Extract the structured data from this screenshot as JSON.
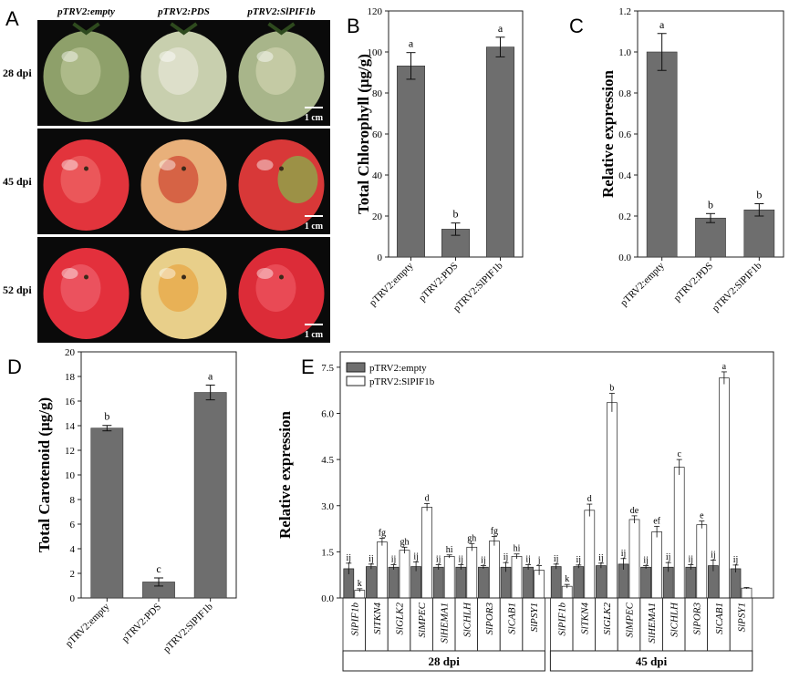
{
  "panel_a": {
    "label": "A",
    "columns": [
      "pTRV2:empty",
      "pTRV2:PDS",
      "pTRV2:SlPIF1b"
    ],
    "rows": [
      "28 dpi",
      "45 dpi",
      "52 dpi"
    ],
    "scale_bar": "1 cm",
    "fruit_colors": [
      [
        "#8ea06a",
        "#c8cfae",
        "#a8b58a"
      ],
      [
        "#e2343c",
        "#e8b07a",
        "#d83838"
      ],
      [
        "#e3303c",
        "#e8cf8a",
        "#dc2c38"
      ]
    ],
    "patch_colors": [
      [
        "#bfc89a",
        "#e8e8d8",
        "#d2d6b2"
      ],
      [
        "#f06a6a",
        "#cc3a2a",
        "#7cc24e"
      ],
      [
        "#f06670",
        "#e8a23a",
        "#f05a66"
      ]
    ]
  },
  "chart_data": [
    {
      "panel": "B",
      "type": "bar",
      "categories": [
        "pTRV2:empty",
        "pTRV2:PDS",
        "pTRV2:SlPIF1b"
      ],
      "values": [
        93.2,
        13.6,
        102.4
      ],
      "errors": [
        6.5,
        3.0,
        4.8
      ],
      "letters": [
        "a",
        "b",
        "a"
      ],
      "ylabel": "Total Chlorophyll (μg/g)",
      "ylim": [
        0,
        120
      ],
      "yticks": [
        "0",
        "20",
        "40",
        "60",
        "80",
        "100",
        "120"
      ],
      "bar_color": "#6e6e6e"
    },
    {
      "panel": "C",
      "type": "bar",
      "categories": [
        "pTRV2:empty",
        "pTRV2:PDS",
        "pTRV2:SlPIF1b"
      ],
      "values": [
        1.0,
        0.19,
        0.23
      ],
      "errors": [
        0.09,
        0.022,
        0.03
      ],
      "letters": [
        "a",
        "b",
        "b"
      ],
      "ylabel": "Relative expression",
      "ylim": [
        0,
        1.2
      ],
      "yticks": [
        "0.0",
        "0.2",
        "0.4",
        "0.6",
        "0.8",
        "1.0",
        "1.2"
      ],
      "bar_color": "#6e6e6e"
    },
    {
      "panel": "D",
      "type": "bar",
      "categories": [
        "pTRV2:empty",
        "pTRV2:PDS",
        "pTRV2:SlPIF1b"
      ],
      "values": [
        13.8,
        1.3,
        16.7
      ],
      "errors": [
        0.22,
        0.33,
        0.6
      ],
      "letters": [
        "b",
        "c",
        "a"
      ],
      "ylabel": "Total Carotenoid (μg/g)",
      "ylim": [
        0,
        20
      ],
      "yticks": [
        "0",
        "2",
        "4",
        "6",
        "8",
        "10",
        "12",
        "14",
        "16",
        "18",
        "20"
      ],
      "bar_color": "#6e6e6e"
    },
    {
      "panel": "E",
      "type": "bar",
      "ylabel": "Relative expression",
      "ylim": [
        0,
        8
      ],
      "yticks": [
        "0.0",
        "1.5",
        "3.0",
        "4.5",
        "6.0",
        "7.5"
      ],
      "legend": [
        "pTRV2:empty",
        "pTRV2:SlPIF1b"
      ],
      "groups": [
        "28 dpi",
        "45 dpi"
      ],
      "genes": [
        "SlPIF1b",
        "SlTKN4",
        "SlGLK2",
        "SlMPEC",
        "SlHEMA1",
        "SlCHLH",
        "SlPOR3",
        "SlCAB1",
        "SlPSY1"
      ],
      "series": [
        {
          "name": "pTRV2:empty",
          "color": "#6e6e6e",
          "values_28": [
            0.95,
            1.02,
            1.0,
            1.02,
            1.0,
            1.0,
            1.0,
            1.0,
            1.0
          ],
          "errors_28": [
            0.18,
            0.08,
            0.08,
            0.15,
            0.08,
            0.08,
            0.05,
            0.15,
            0.08
          ],
          "letters_28": [
            "ij",
            "ij",
            "ij",
            "ij",
            "ij",
            "ij",
            "ij",
            "ij",
            "ij"
          ],
          "values_45": [
            1.02,
            1.02,
            1.05,
            1.1,
            1.0,
            1.0,
            1.0,
            1.05,
            0.95
          ],
          "errors_45": [
            0.08,
            0.05,
            0.08,
            0.18,
            0.05,
            0.15,
            0.08,
            0.18,
            0.12
          ],
          "letters_45": [
            "ij",
            "ij",
            "ij",
            "ij",
            "ij",
            "ij",
            "ij",
            "ij",
            "ij"
          ]
        },
        {
          "name": "pTRV2:SlPIF1b",
          "color": "#ffffff",
          "values_28": [
            0.25,
            1.82,
            1.55,
            2.95,
            1.35,
            1.65,
            1.85,
            1.35,
            0.9
          ],
          "errors_28": [
            0.05,
            0.12,
            0.1,
            0.12,
            0.05,
            0.12,
            0.15,
            0.08,
            0.15
          ],
          "letters_28": [
            "k",
            "fg",
            "gh",
            "d",
            "hi",
            "gh",
            "fg",
            "hi",
            "j"
          ],
          "values_45": [
            0.38,
            2.85,
            6.35,
            2.55,
            2.15,
            4.25,
            2.38,
            7.15,
            0.32
          ],
          "errors_45": [
            0.06,
            0.2,
            0.3,
            0.12,
            0.18,
            0.25,
            0.12,
            0.2,
            0.02
          ],
          "letters_45": [
            "k",
            "d",
            "b",
            "de",
            "ef",
            "c",
            "e",
            "a",
            ""
          ]
        }
      ]
    }
  ]
}
